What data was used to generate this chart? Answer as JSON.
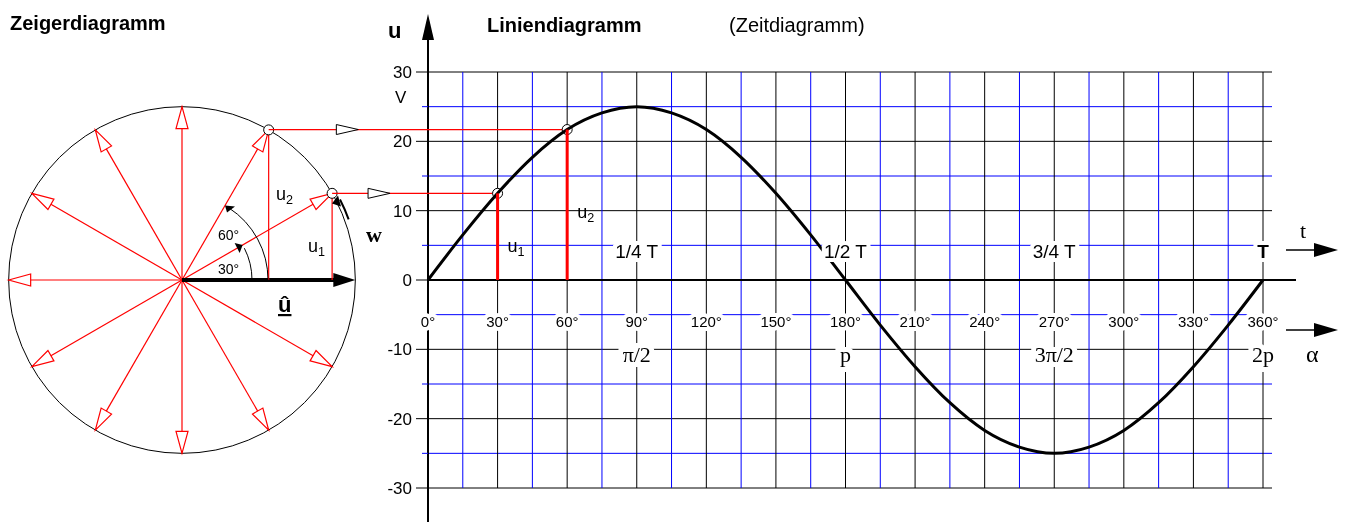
{
  "chart_data": [
    {
      "type": "other",
      "title": "Zeigerdiagramm",
      "annotations": [
        "u$_{2}$",
        "u$_{1}$",
        "60°",
        "30°",
        "w",
        "û"
      ]
    },
    {
      "type": "line",
      "title": "Liniendiagramm",
      "subtitle": "(Zeitdiagramm)",
      "ylabel": "u",
      "xlabel": "α",
      "x": [
        0,
        15,
        30,
        45,
        60,
        75,
        90,
        105,
        120,
        135,
        150,
        165,
        180,
        195,
        210,
        225,
        240,
        255,
        270,
        285,
        300,
        315,
        330,
        345,
        360
      ],
      "series": [
        {
          "color": "#000000",
          "values": [
            0,
            6.5,
            12.5,
            17.7,
            21.7,
            24.1,
            25,
            24.1,
            21.7,
            17.7,
            12.5,
            6.5,
            0,
            -6.5,
            -12.5,
            -17.7,
            -21.7,
            -24.1,
            -25,
            -24.1,
            -21.7,
            -17.7,
            -12.5,
            -6.5,
            0
          ]
        },
        {
          "type": "bar",
          "color": "#ff0000",
          "x": [
            30,
            60
          ],
          "values": [
            12.5,
            21.7
          ]
        }
      ],
      "xlim": [
        0,
        360
      ],
      "ylim": [
        -30,
        30
      ],
      "xticks": [
        {
          "value": 0,
          "label": "0°"
        },
        {
          "value": 15,
          "label": null
        },
        {
          "value": 30,
          "label": "30°"
        },
        {
          "value": 45,
          "label": null
        },
        {
          "value": 60,
          "label": "60°"
        },
        {
          "value": 75,
          "label": null
        },
        {
          "value": 90,
          "label": "90°"
        },
        {
          "value": 105,
          "label": null
        },
        {
          "value": 120,
          "label": "120°"
        },
        {
          "value": 135,
          "label": null
        },
        {
          "value": 150,
          "label": "150°"
        },
        {
          "value": 165,
          "label": null
        },
        {
          "value": 180,
          "label": "180°"
        },
        {
          "value": 195,
          "label": null
        },
        {
          "value": 210,
          "label": "210°"
        },
        {
          "value": 225,
          "label": null
        },
        {
          "value": 240,
          "label": "240°"
        },
        {
          "value": 255,
          "label": null
        },
        {
          "value": 270,
          "label": "270°"
        },
        {
          "value": 285,
          "label": null
        },
        {
          "value": 300,
          "label": "300°"
        },
        {
          "value": 315,
          "label": null
        },
        {
          "value": 330,
          "label": "330°"
        },
        {
          "value": 345,
          "label": null
        },
        {
          "value": 360,
          "label": "360°"
        }
      ],
      "yticks": [
        -30,
        {
          "value": -25,
          "label": null
        },
        -20,
        {
          "value": -15,
          "label": null
        },
        -10,
        {
          "value": -5,
          "label": null
        },
        0,
        {
          "value": 5,
          "label": null
        },
        10,
        {
          "value": 15,
          "label": null
        },
        20,
        {
          "value": 25,
          "label": null
        },
        30
      ],
      "grid": true,
      "annotations": [
        "V",
        "1/4 T",
        "1/2 T",
        "3/4 T",
        "T",
        "π/2",
        "p",
        "3π/2",
        "2p",
        "t",
        {
          "text": "u$_{1}$",
          "x": 30,
          "y": 5
        },
        {
          "text": "u$_{2}$",
          "x": 60,
          "y": 10
        }
      ]
    }
  ]
}
